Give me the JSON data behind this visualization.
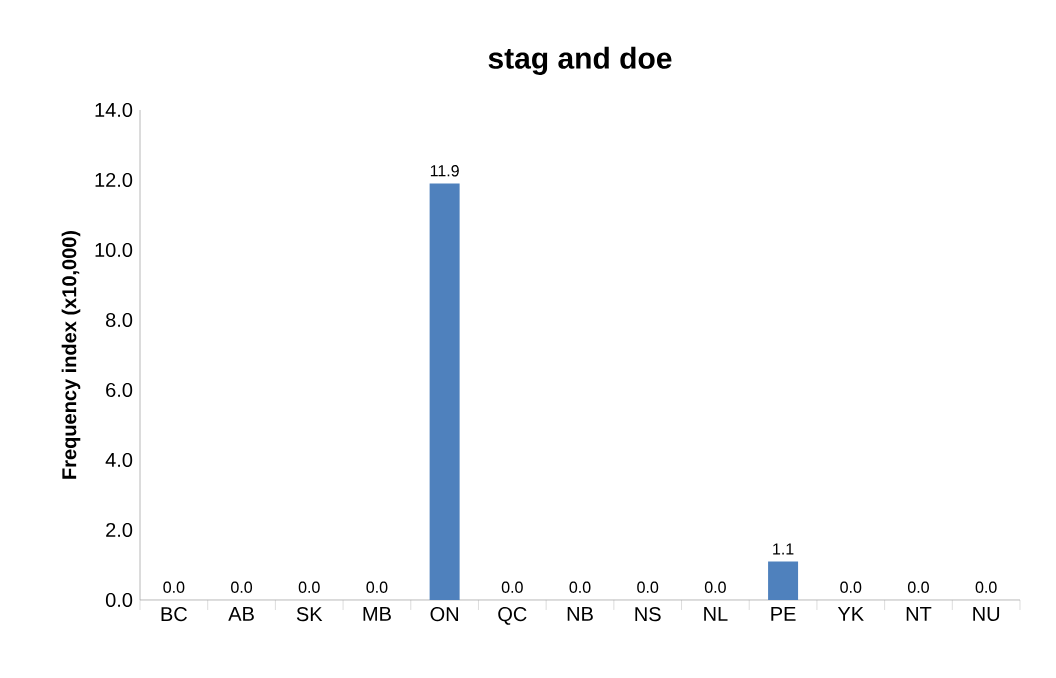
{
  "chart_data": {
    "type": "bar",
    "title": "stag and doe",
    "ylabel": "Frequency index (x10,000)",
    "categories": [
      "BC",
      "AB",
      "SK",
      "MB",
      "ON",
      "QC",
      "NB",
      "NS",
      "NL",
      "PE",
      "YK",
      "NT",
      "NU"
    ],
    "values": [
      0,
      0,
      0,
      0,
      11.9,
      0,
      0,
      0,
      0,
      1.1,
      0,
      0,
      0
    ],
    "value_labels": [
      "0.0",
      "0.0",
      "0.0",
      "0.0",
      "11.9",
      "0.0",
      "0.0",
      "0.0",
      "0.0",
      "1.1",
      "0.0",
      "0.0",
      "0.0"
    ],
    "color": "#4f81bd",
    "ylim": [
      0,
      14
    ],
    "yticks": [
      {
        "value": 0,
        "label": "0.0"
      },
      {
        "value": 2,
        "label": "2.0"
      },
      {
        "value": 4,
        "label": "4.0"
      },
      {
        "value": 6,
        "label": "6.0"
      },
      {
        "value": 8,
        "label": "8.0"
      },
      {
        "value": 10,
        "label": "10.0"
      },
      {
        "value": 12,
        "label": "12.0"
      },
      {
        "value": 14,
        "label": "14.0"
      }
    ],
    "grid": false
  }
}
